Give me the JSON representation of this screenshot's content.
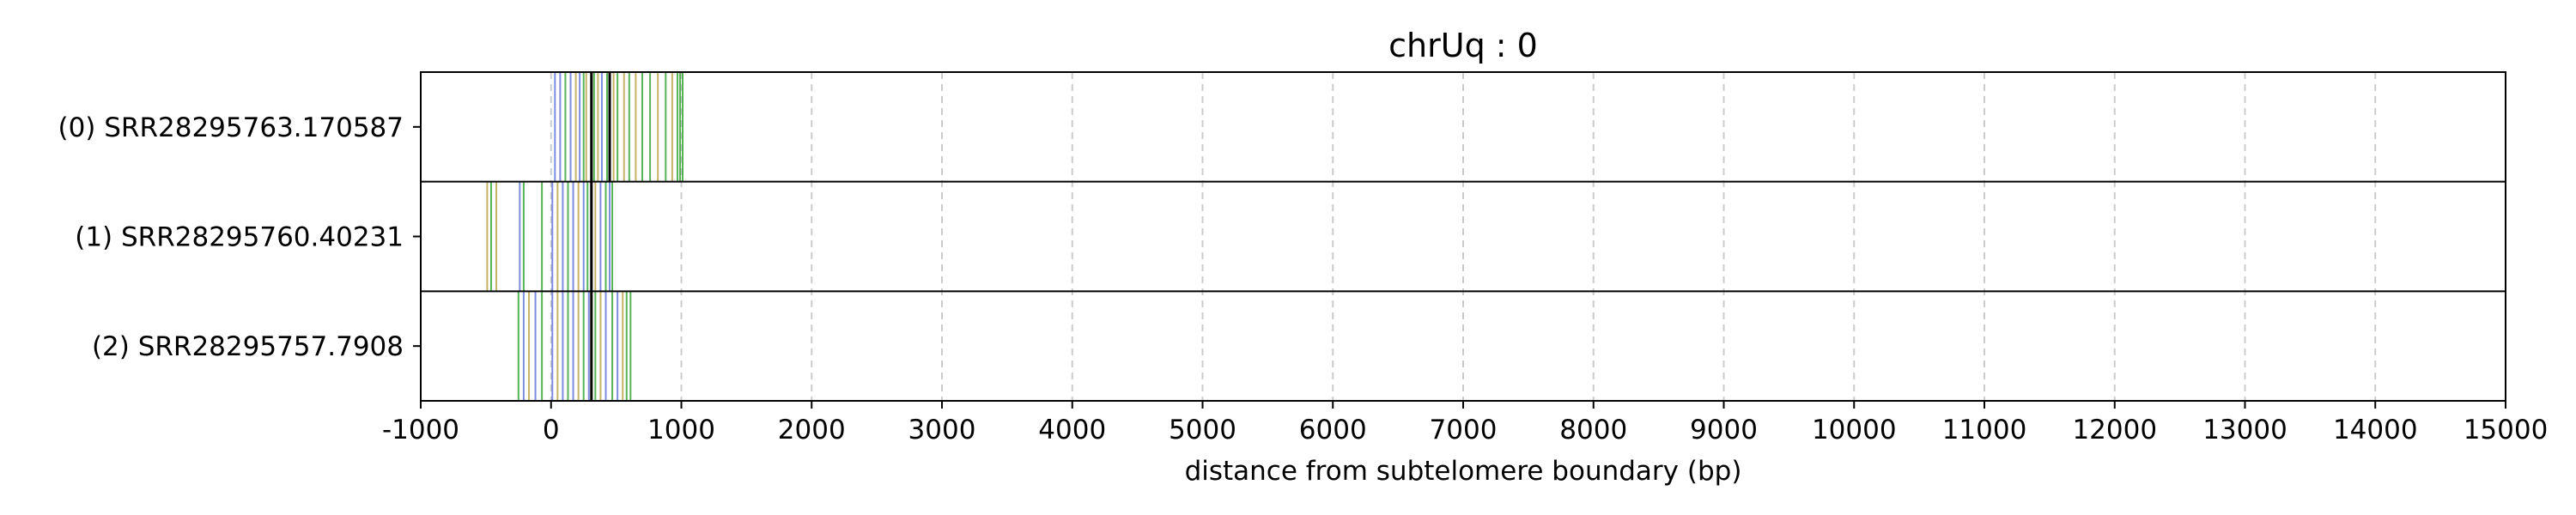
{
  "chart_data": {
    "type": "event-track",
    "title": "chrUq : 0",
    "xlabel": "distance from subtelomere boundary (bp)",
    "ylabel": "",
    "xlim": [
      -1000,
      15000
    ],
    "x_ticks": [
      -1000,
      0,
      1000,
      2000,
      3000,
      4000,
      5000,
      6000,
      7000,
      8000,
      9000,
      10000,
      11000,
      12000,
      13000,
      14000,
      15000
    ],
    "x_tick_labels": [
      "-1000",
      "0",
      "1000",
      "2000",
      "3000",
      "4000",
      "5000",
      "6000",
      "7000",
      "8000",
      "9000",
      "10000",
      "11000",
      "12000",
      "13000",
      "14000",
      "15000"
    ],
    "grid": "vertical dashed",
    "colors": {
      "green": "#2ca02c",
      "blue": "#5b6fd6",
      "olive": "#b8a040",
      "black": "#000000",
      "grid": "#cccccc"
    },
    "reads": [
      {
        "label": "(0) SRR28295763.170587",
        "marks": [
          {
            "x": 30,
            "c": "blue"
          },
          {
            "x": 70,
            "c": "blue"
          },
          {
            "x": 110,
            "c": "green"
          },
          {
            "x": 150,
            "c": "blue"
          },
          {
            "x": 190,
            "c": "olive"
          },
          {
            "x": 220,
            "c": "blue"
          },
          {
            "x": 250,
            "c": "green"
          },
          {
            "x": 270,
            "c": "olive"
          },
          {
            "x": 310,
            "c": "black"
          },
          {
            "x": 330,
            "c": "green"
          },
          {
            "x": 360,
            "c": "olive"
          },
          {
            "x": 390,
            "c": "blue"
          },
          {
            "x": 430,
            "c": "green"
          },
          {
            "x": 450,
            "c": "black"
          },
          {
            "x": 480,
            "c": "olive"
          },
          {
            "x": 510,
            "c": "green"
          },
          {
            "x": 560,
            "c": "olive"
          },
          {
            "x": 600,
            "c": "green"
          },
          {
            "x": 650,
            "c": "olive"
          },
          {
            "x": 700,
            "c": "green"
          },
          {
            "x": 760,
            "c": "green"
          },
          {
            "x": 820,
            "c": "olive"
          },
          {
            "x": 880,
            "c": "green"
          },
          {
            "x": 930,
            "c": "olive"
          },
          {
            "x": 970,
            "c": "green"
          },
          {
            "x": 990,
            "c": "green"
          },
          {
            "x": 1010,
            "c": "green"
          }
        ]
      },
      {
        "label": "(1) SRR28295760.40231",
        "marks": [
          {
            "x": -490,
            "c": "olive"
          },
          {
            "x": -460,
            "c": "green"
          },
          {
            "x": -420,
            "c": "olive"
          },
          {
            "x": -240,
            "c": "blue"
          },
          {
            "x": -210,
            "c": "green"
          },
          {
            "x": -70,
            "c": "green"
          },
          {
            "x": 10,
            "c": "blue"
          },
          {
            "x": 50,
            "c": "olive"
          },
          {
            "x": 90,
            "c": "blue"
          },
          {
            "x": 130,
            "c": "green"
          },
          {
            "x": 170,
            "c": "blue"
          },
          {
            "x": 210,
            "c": "olive"
          },
          {
            "x": 250,
            "c": "blue"
          },
          {
            "x": 280,
            "c": "green"
          },
          {
            "x": 310,
            "c": "black"
          },
          {
            "x": 340,
            "c": "olive"
          },
          {
            "x": 380,
            "c": "blue"
          },
          {
            "x": 420,
            "c": "green"
          },
          {
            "x": 450,
            "c": "blue"
          },
          {
            "x": 470,
            "c": "green"
          }
        ]
      },
      {
        "label": "(2) SRR28295757.7908",
        "marks": [
          {
            "x": -250,
            "c": "green"
          },
          {
            "x": -210,
            "c": "blue"
          },
          {
            "x": -170,
            "c": "olive"
          },
          {
            "x": -120,
            "c": "blue"
          },
          {
            "x": -70,
            "c": "green"
          },
          {
            "x": 10,
            "c": "blue"
          },
          {
            "x": 50,
            "c": "olive"
          },
          {
            "x": 90,
            "c": "blue"
          },
          {
            "x": 130,
            "c": "green"
          },
          {
            "x": 170,
            "c": "blue"
          },
          {
            "x": 210,
            "c": "olive"
          },
          {
            "x": 250,
            "c": "green"
          },
          {
            "x": 290,
            "c": "blue"
          },
          {
            "x": 310,
            "c": "black"
          },
          {
            "x": 340,
            "c": "green"
          },
          {
            "x": 380,
            "c": "olive"
          },
          {
            "x": 420,
            "c": "blue"
          },
          {
            "x": 470,
            "c": "green"
          },
          {
            "x": 510,
            "c": "blue"
          },
          {
            "x": 550,
            "c": "olive"
          },
          {
            "x": 580,
            "c": "green"
          },
          {
            "x": 610,
            "c": "green"
          }
        ]
      }
    ]
  }
}
